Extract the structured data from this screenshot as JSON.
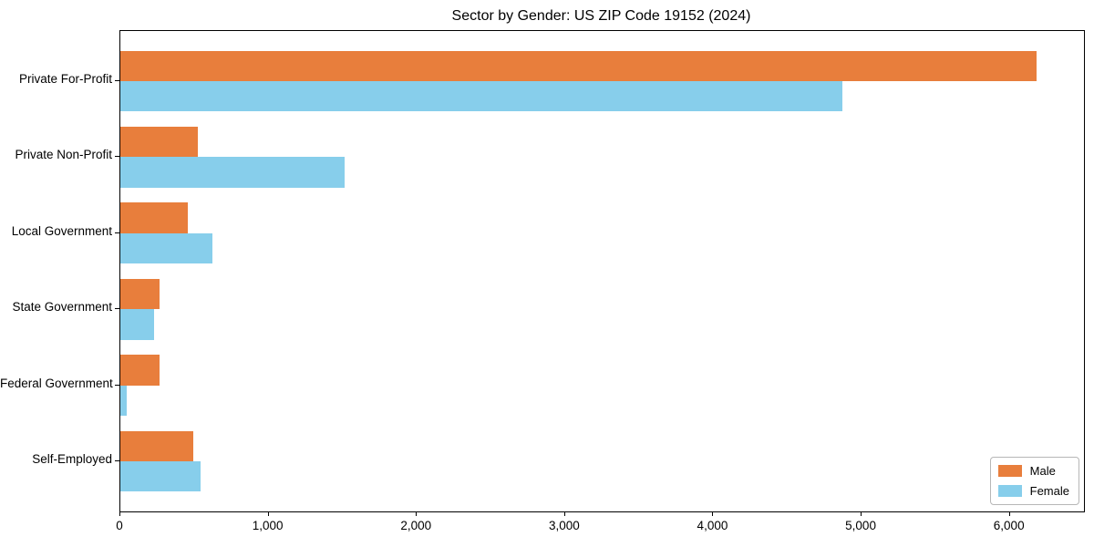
{
  "title": "Sector by Gender: US ZIP Code 19152 (2024)",
  "chart_data": {
    "type": "bar",
    "orientation": "horizontal",
    "title": "Sector by Gender: US ZIP Code 19152 (2024)",
    "xlabel": "",
    "ylabel": "",
    "categories": [
      "Private For-Profit",
      "Private Non-Profit",
      "Local Government",
      "State Government",
      "Federal Government",
      "Self-Employed"
    ],
    "series": [
      {
        "name": "Male",
        "color": "#E87E3C",
        "values": [
          6183,
          523,
          457,
          262,
          267,
          493
        ]
      },
      {
        "name": "Female",
        "color": "#87CEEB",
        "values": [
          4872,
          1512,
          622,
          228,
          45,
          544
        ]
      }
    ],
    "xlim": [
      0,
      6500
    ],
    "xticks": [
      0,
      1000,
      2000,
      3000,
      4000,
      5000,
      6000
    ],
    "xtick_labels": [
      "0",
      "1,000",
      "2,000",
      "3,000",
      "4,000",
      "5,000",
      "6,000"
    ],
    "grid": false,
    "legend_position": "lower right",
    "legend_title": ""
  }
}
